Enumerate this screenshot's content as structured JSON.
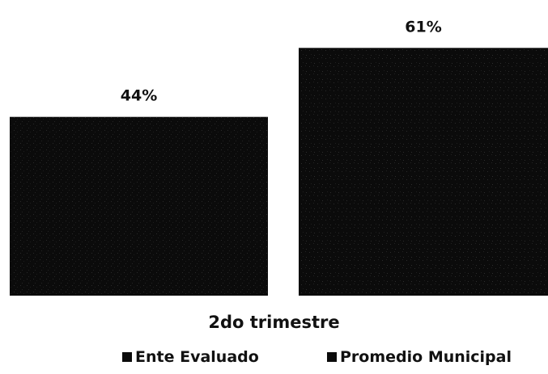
{
  "chart_data": {
    "type": "bar",
    "categories": [
      "2do trimestre"
    ],
    "series": [
      {
        "name": "Ente Evaluado",
        "values": [
          44
        ],
        "labels": [
          "44%"
        ],
        "color": "#0b0b0b"
      },
      {
        "name": "Promedio Municipal",
        "values": [
          61
        ],
        "labels": [
          "61%"
        ],
        "color": "#0b0b0b"
      }
    ],
    "ylim": [
      0,
      70
    ],
    "grid": false,
    "legend_position": "bottom"
  }
}
